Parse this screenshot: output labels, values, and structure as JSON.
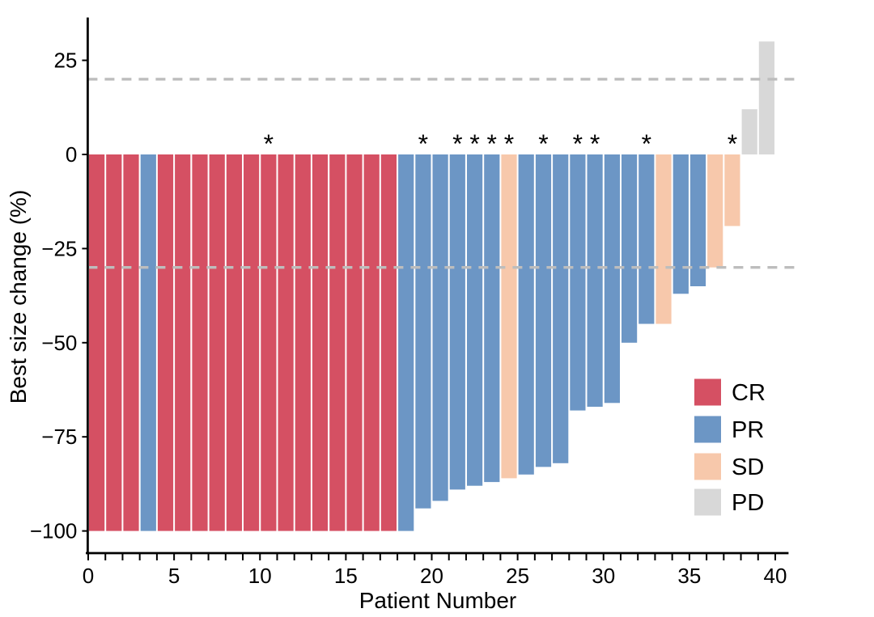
{
  "chart_data": {
    "type": "bar",
    "subtype": "waterfall",
    "title": "",
    "xlabel": "Patient Number",
    "ylabel": "Best size change (%)",
    "xlim": [
      0,
      40.7
    ],
    "ylim": [
      -106,
      36
    ],
    "x_major_ticks": [
      0,
      5,
      10,
      15,
      20,
      25,
      30,
      35,
      40
    ],
    "x_minor_tick_step": 1,
    "y_ticks": [
      {
        "value": 25,
        "label": "25"
      },
      {
        "value": 0,
        "label": "0"
      },
      {
        "value": -25,
        "label": "−25"
      },
      {
        "value": -50,
        "label": "−50"
      },
      {
        "value": -75,
        "label": "−75"
      },
      {
        "value": -100,
        "label": "−100"
      }
    ],
    "reference_lines": [
      {
        "y": 20,
        "style": "dashed",
        "color": "#BDBDBD"
      },
      {
        "y": -30,
        "style": "dashed",
        "color": "#BDBDBD"
      }
    ],
    "grid": "off",
    "legend": {
      "position": "inside-right",
      "entries": [
        {
          "label": "CR",
          "color": "#D55063"
        },
        {
          "label": "PR",
          "color": "#6C96C5"
        },
        {
          "label": "SD",
          "color": "#F7C8AB"
        },
        {
          "label": "PD",
          "color": "#D8D8D8"
        }
      ]
    },
    "annotation_symbol": "*",
    "patients": [
      {
        "patient": 1,
        "response": "CR",
        "value": -100,
        "star": false
      },
      {
        "patient": 2,
        "response": "CR",
        "value": -100,
        "star": false
      },
      {
        "patient": 3,
        "response": "CR",
        "value": -100,
        "star": false
      },
      {
        "patient": 4,
        "response": "PR",
        "value": -100,
        "star": false
      },
      {
        "patient": 5,
        "response": "CR",
        "value": -100,
        "star": false
      },
      {
        "patient": 6,
        "response": "CR",
        "value": -100,
        "star": false
      },
      {
        "patient": 7,
        "response": "CR",
        "value": -100,
        "star": false
      },
      {
        "patient": 8,
        "response": "CR",
        "value": -100,
        "star": false
      },
      {
        "patient": 9,
        "response": "CR",
        "value": -100,
        "star": false
      },
      {
        "patient": 10,
        "response": "CR",
        "value": -100,
        "star": false
      },
      {
        "patient": 11,
        "response": "CR",
        "value": -100,
        "star": true
      },
      {
        "patient": 12,
        "response": "CR",
        "value": -100,
        "star": false
      },
      {
        "patient": 13,
        "response": "CR",
        "value": -100,
        "star": false
      },
      {
        "patient": 14,
        "response": "CR",
        "value": -100,
        "star": false
      },
      {
        "patient": 15,
        "response": "CR",
        "value": -100,
        "star": false
      },
      {
        "patient": 16,
        "response": "CR",
        "value": -100,
        "star": false
      },
      {
        "patient": 17,
        "response": "CR",
        "value": -100,
        "star": false
      },
      {
        "patient": 18,
        "response": "CR",
        "value": -100,
        "star": false
      },
      {
        "patient": 19,
        "response": "PR",
        "value": -100,
        "star": false
      },
      {
        "patient": 20,
        "response": "PR",
        "value": -94,
        "star": true
      },
      {
        "patient": 21,
        "response": "PR",
        "value": -92,
        "star": false
      },
      {
        "patient": 22,
        "response": "PR",
        "value": -89,
        "star": true
      },
      {
        "patient": 23,
        "response": "PR",
        "value": -88,
        "star": true
      },
      {
        "patient": 24,
        "response": "PR",
        "value": -87,
        "star": true
      },
      {
        "patient": 25,
        "response": "SD",
        "value": -86,
        "star": true
      },
      {
        "patient": 26,
        "response": "PR",
        "value": -85,
        "star": false
      },
      {
        "patient": 27,
        "response": "PR",
        "value": -83,
        "star": true
      },
      {
        "patient": 28,
        "response": "PR",
        "value": -82,
        "star": false
      },
      {
        "patient": 29,
        "response": "PR",
        "value": -68,
        "star": true
      },
      {
        "patient": 30,
        "response": "PR",
        "value": -67,
        "star": true
      },
      {
        "patient": 31,
        "response": "PR",
        "value": -66,
        "star": false
      },
      {
        "patient": 32,
        "response": "PR",
        "value": -50,
        "star": false
      },
      {
        "patient": 33,
        "response": "PR",
        "value": -45,
        "star": true
      },
      {
        "patient": 34,
        "response": "SD",
        "value": -45,
        "star": false
      },
      {
        "patient": 35,
        "response": "PR",
        "value": -37,
        "star": false
      },
      {
        "patient": 36,
        "response": "PR",
        "value": -35,
        "star": false
      },
      {
        "patient": 37,
        "response": "SD",
        "value": -30,
        "star": false
      },
      {
        "patient": 38,
        "response": "SD",
        "value": -19,
        "star": true
      },
      {
        "patient": 39,
        "response": "PD",
        "value": 12,
        "star": false
      },
      {
        "patient": 40,
        "response": "PD",
        "value": 30,
        "star": false
      }
    ]
  }
}
